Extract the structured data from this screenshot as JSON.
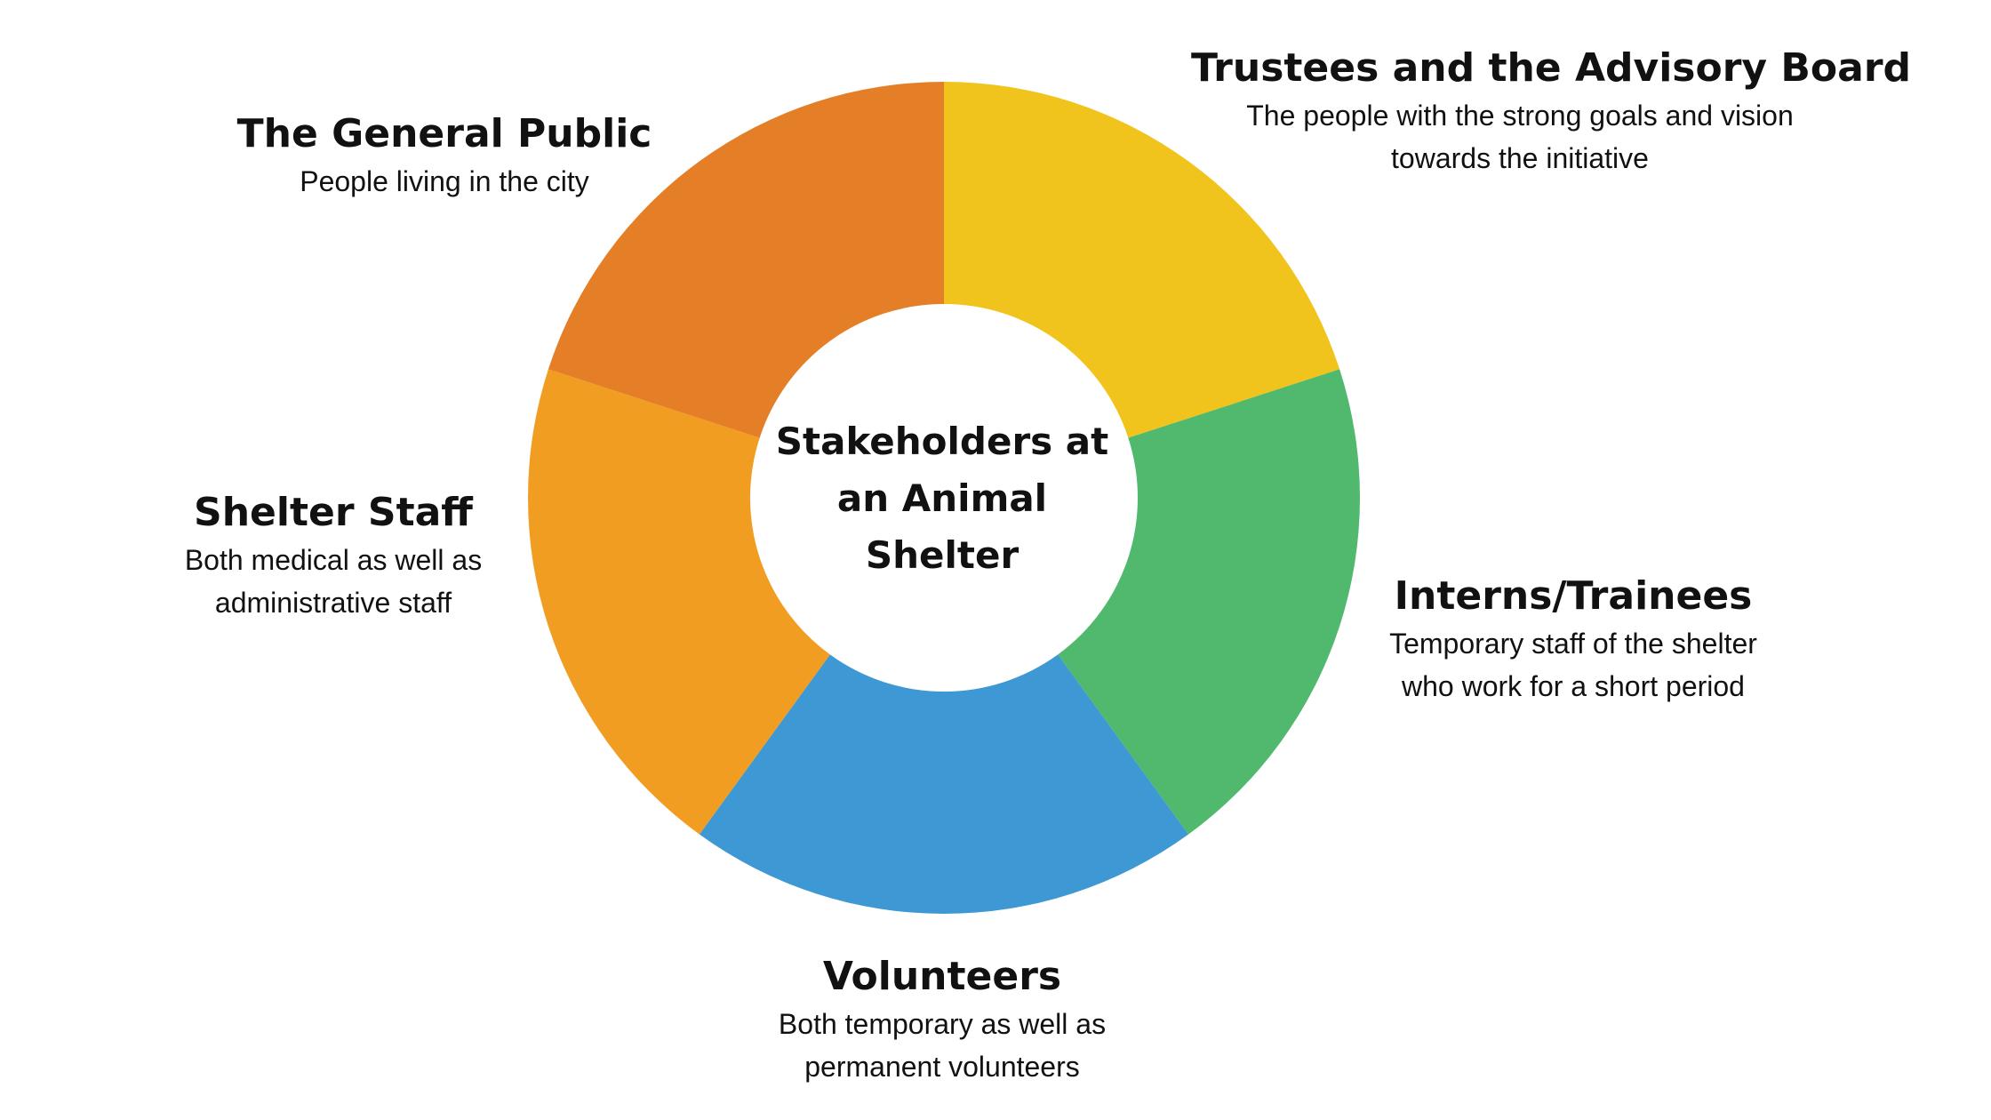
{
  "center_title": "Stakeholders at an Animal Shelter",
  "segments": [
    {
      "title": "Trustees and the Advisory Board",
      "description": "The people with the strong goals and vision towards the initiative",
      "color": "#F0C41D"
    },
    {
      "title": "Interns/Trainees",
      "description": "Temporary staff of the shelter who work for a short period",
      "color": "#51B96E"
    },
    {
      "title": "Volunteers",
      "description": "Both temporary as well as permanent volunteers",
      "color": "#3D98D3"
    },
    {
      "title": "Shelter Staff",
      "description": "Both medical as well as administrative staff",
      "color": "#F09D22"
    },
    {
      "title": "The General Public",
      "description": "People living in the city",
      "color": "#E57F27"
    }
  ]
}
